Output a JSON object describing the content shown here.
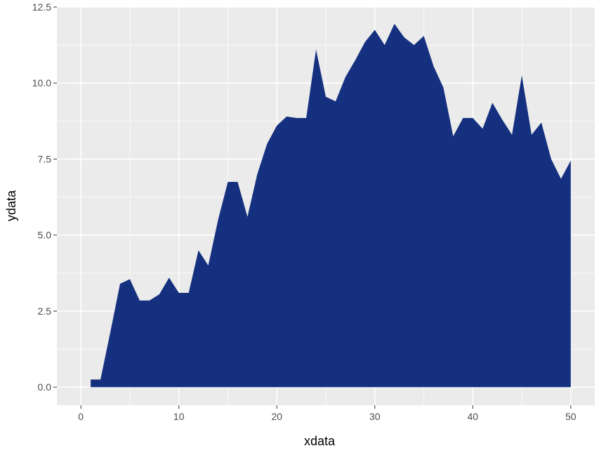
{
  "chart_data": {
    "type": "area",
    "title": "",
    "xlabel": "xdata",
    "ylabel": "ydata",
    "xlim": [
      -2.45,
      52.45
    ],
    "ylim": [
      -0.595,
      12.5
    ],
    "x_ticks": [
      0,
      10,
      20,
      30,
      40,
      50
    ],
    "x_tick_labels": [
      "0",
      "10",
      "20",
      "30",
      "40",
      "50"
    ],
    "y_ticks": [
      0.0,
      2.5,
      5.0,
      7.5,
      10.0,
      12.5
    ],
    "y_tick_labels": [
      "0.0",
      "2.5",
      "5.0",
      "7.5",
      "10.0",
      "12.5"
    ],
    "grid": true,
    "legend": "none",
    "fill_color": "#15307f",
    "panel_background": "#ebebeb",
    "grid_color": "#ffffff",
    "series": [
      {
        "x": [
          1,
          2,
          3,
          4,
          5,
          6,
          7,
          8,
          9,
          10,
          11,
          12,
          13,
          14,
          15,
          16,
          17,
          18,
          19,
          20,
          21,
          22,
          23,
          24,
          25,
          26,
          27,
          28,
          29,
          30,
          31,
          32,
          33,
          34,
          35,
          36,
          37,
          38,
          39,
          40,
          41,
          42,
          43,
          44,
          45,
          46,
          47,
          48,
          49,
          50
        ],
        "y": [
          0.25,
          0.25,
          1.8,
          3.4,
          3.55,
          2.85,
          2.85,
          3.05,
          3.6,
          3.1,
          3.1,
          4.5,
          4.0,
          5.5,
          6.75,
          6.75,
          5.6,
          7.0,
          8.0,
          8.6,
          8.9,
          8.85,
          8.85,
          11.1,
          9.55,
          9.4,
          10.2,
          10.75,
          11.35,
          11.75,
          11.25,
          11.95,
          11.5,
          11.25,
          11.55,
          10.55,
          9.85,
          8.25,
          8.85,
          8.85,
          8.5,
          9.35,
          8.8,
          8.3,
          10.25,
          8.3,
          8.7,
          7.5,
          6.85,
          7.45
        ]
      }
    ]
  }
}
